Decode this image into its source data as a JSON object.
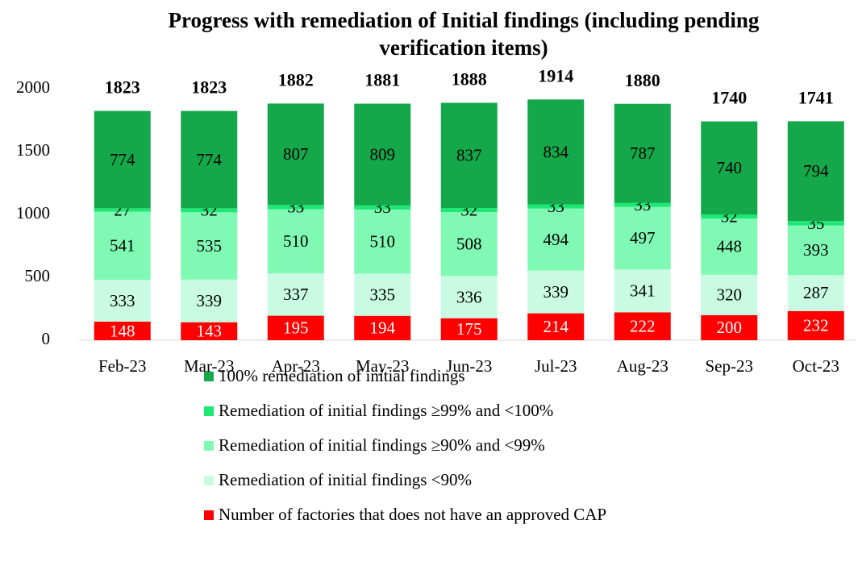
{
  "chart_data": {
    "type": "stacked_bar",
    "title": [
      "Progress with remediation of Initial findings (including pending",
      "verification items)"
    ],
    "categories": [
      "Feb-23",
      "Mar-23",
      "Apr-23",
      "May-23",
      "Jun-23",
      "Jul-23",
      "Aug-23",
      "Sep-23",
      "Oct-23"
    ],
    "series": [
      {
        "name": "Number of factories that does not have an approved CAP",
        "color": "#ff0000",
        "label_color": "#ffffff",
        "values": [
          148,
          143,
          195,
          194,
          175,
          214,
          222,
          200,
          232
        ]
      },
      {
        "name": "Remediation of initial findings <90%",
        "color": "#c8fbe2",
        "label_color": "#000000",
        "values": [
          333,
          339,
          337,
          335,
          336,
          339,
          341,
          320,
          287
        ]
      },
      {
        "name": "Remediation of initial findings ≥90% and <99%",
        "color": "#80f9b4",
        "label_color": "#000000",
        "values": [
          541,
          535,
          510,
          510,
          508,
          494,
          497,
          448,
          393
        ]
      },
      {
        "name": "Remediation of initial findings ≥99% and <100%",
        "color": "#1ee874",
        "label_color": "#000000",
        "values": [
          27,
          32,
          33,
          33,
          32,
          33,
          33,
          32,
          35
        ]
      },
      {
        "name": "100% remediation of initial findings",
        "color": "#14a84a",
        "label_color": "#000000",
        "values": [
          774,
          774,
          807,
          809,
          837,
          834,
          787,
          740,
          794
        ]
      }
    ],
    "totals": [
      1823,
      1823,
      1882,
      1881,
      1888,
      1914,
      1880,
      1740,
      1741
    ],
    "ylim": [
      0,
      2000
    ],
    "yticks": [
      0,
      500,
      1000,
      1500,
      2000
    ],
    "grid": false
  }
}
